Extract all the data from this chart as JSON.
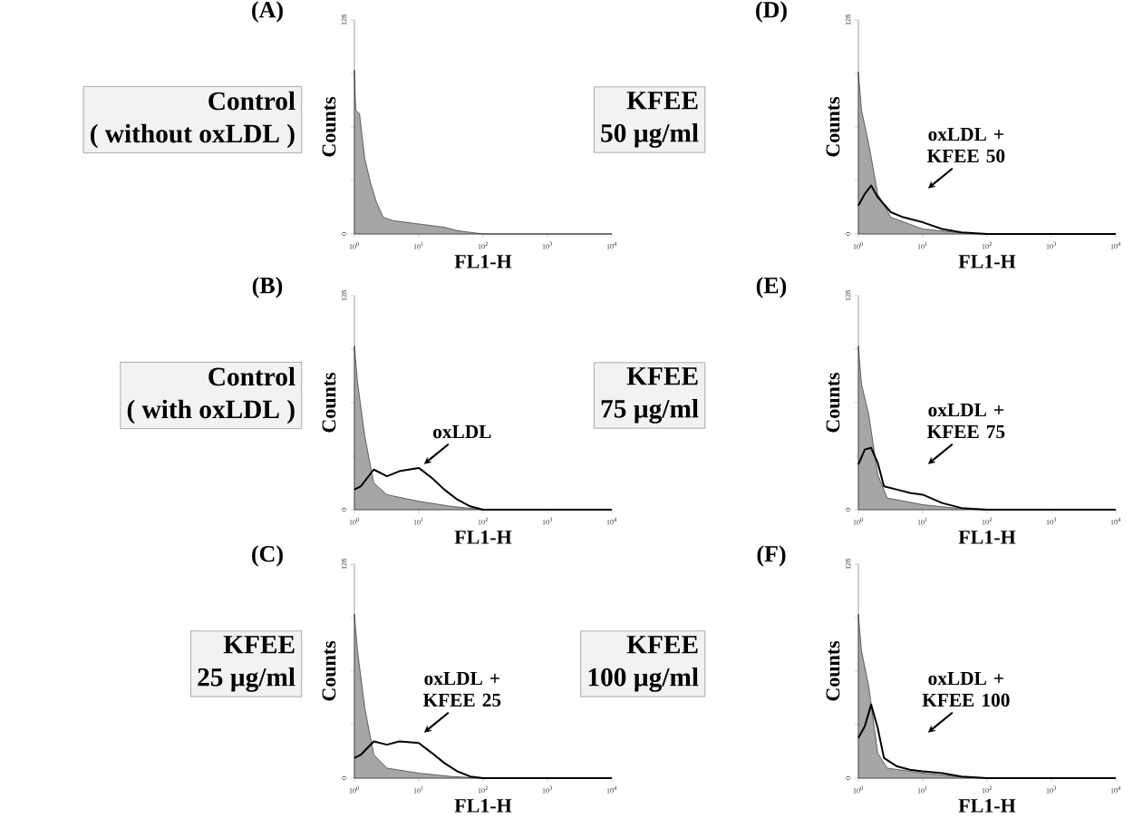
{
  "chart_data": [
    {
      "type": "area",
      "title": "(A)",
      "annotations": [
        "Control",
        "( without oxLDL )"
      ],
      "xlabel": "FL1-H",
      "ylabel": "Counts",
      "log": "x",
      "xlim": [
        1,
        10000
      ],
      "ylim": [
        0,
        128
      ],
      "xticks": [
        {
          "value": 1,
          "label": "10$^{0}$"
        },
        {
          "value": 10,
          "label": "10$^{1}$"
        },
        {
          "value": 100,
          "label": "10$^{2}$"
        },
        {
          "value": 1000,
          "label": "10$^{3}$"
        },
        {
          "value": 10000,
          "label": "10$^{4}$"
        }
      ],
      "yticks": [
        0,
        {
          "value": 32,
          "label": null
        },
        {
          "value": 64,
          "label": null
        },
        {
          "value": 96,
          "label": null
        },
        128
      ],
      "series": [
        {
          "type": "area",
          "color": "#a6a6a6",
          "x": [
            1,
            1.05,
            1.2,
            1.45,
            1.8,
            2.2,
            2.8,
            4,
            6.3,
            10,
            16,
            25,
            40,
            63,
            100,
            10000
          ],
          "values": [
            98,
            74,
            72,
            45,
            30,
            19,
            10,
            8,
            7,
            6,
            5,
            4,
            2,
            1,
            0,
            0
          ]
        }
      ]
    },
    {
      "type": "area",
      "title": "(D)",
      "annotations": [
        "KFEE",
        "50 µg/ml",
        "oxLDL + KFEE 50"
      ],
      "xlabel": "FL1-H",
      "ylabel": "Counts",
      "log": "x",
      "xlim": [
        1,
        10000
      ],
      "ylim": [
        0,
        128
      ],
      "xticks": [
        {
          "value": 1,
          "label": "10$^{0}$"
        },
        {
          "value": 10,
          "label": "10$^{1}$"
        },
        {
          "value": 100,
          "label": "10$^{2}$"
        },
        {
          "value": 1000,
          "label": "10$^{3}$"
        },
        {
          "value": 10000,
          "label": "10$^{4}$"
        }
      ],
      "yticks": [
        0,
        {
          "value": 32,
          "label": null
        },
        {
          "value": 64,
          "label": null
        },
        {
          "value": 96,
          "label": null
        },
        128
      ],
      "series": [
        {
          "type": "area",
          "color": "#a6a6a6",
          "x": [
            1,
            1.12,
            1.45,
            2,
            3.2,
            10,
            32,
            100,
            10000
          ],
          "values": [
            97,
            74,
            54,
            24,
            10,
            3,
            1,
            0,
            0
          ]
        },
        {
          "type": "line",
          "color": "#000000",
          "x": [
            1,
            1.26,
            1.58,
            2,
            3.2,
            5,
            10,
            20,
            40,
            100,
            10000
          ],
          "values": [
            17,
            24,
            29,
            22,
            13,
            10,
            7,
            3,
            1,
            0,
            0
          ]
        }
      ]
    },
    {
      "type": "area",
      "title": "(B)",
      "annotations": [
        "Control",
        "( with oxLDL )",
        "oxLDL"
      ],
      "xlabel": "FL1-H",
      "ylabel": "Counts",
      "log": "x",
      "xlim": [
        1,
        10000
      ],
      "ylim": [
        0,
        128
      ],
      "xticks": [
        {
          "value": 1,
          "label": "10$^{0}$"
        },
        {
          "value": 10,
          "label": "10$^{1}$"
        },
        {
          "value": 100,
          "label": "10$^{2}$"
        },
        {
          "value": 1000,
          "label": "10$^{3}$"
        },
        {
          "value": 10000,
          "label": "10$^{4}$"
        }
      ],
      "yticks": [
        0,
        {
          "value": 32,
          "label": null
        },
        {
          "value": 64,
          "label": null
        },
        {
          "value": 96,
          "label": null
        },
        128
      ],
      "series": [
        {
          "type": "area",
          "color": "#a6a6a6",
          "x": [
            1,
            1.12,
            1.45,
            2,
            3.2,
            10,
            32,
            100,
            10000
          ],
          "values": [
            98,
            76,
            44,
            16,
            9,
            5,
            2,
            0,
            0
          ]
        },
        {
          "type": "line",
          "color": "#000000",
          "x": [
            1,
            1.26,
            2,
            3.2,
            5,
            10,
            16,
            25,
            40,
            63,
            100,
            10000
          ],
          "values": [
            12,
            14,
            24,
            20,
            23,
            25,
            19,
            12,
            6,
            2,
            0,
            0
          ]
        }
      ]
    },
    {
      "type": "area",
      "title": "(E)",
      "annotations": [
        "KFEE",
        "75 µg/ml",
        "oxLDL + KFEE 75"
      ],
      "xlabel": "FL1-H",
      "ylabel": "Counts",
      "log": "x",
      "xlim": [
        1,
        10000
      ],
      "ylim": [
        0,
        128
      ],
      "xticks": [
        {
          "value": 1,
          "label": "10$^{0}$"
        },
        {
          "value": 10,
          "label": "10$^{1}$"
        },
        {
          "value": 100,
          "label": "10$^{2}$"
        },
        {
          "value": 1000,
          "label": "10$^{3}$"
        },
        {
          "value": 10000,
          "label": "10$^{4}$"
        }
      ],
      "yticks": [
        0,
        {
          "value": 32,
          "label": null
        },
        {
          "value": 64,
          "label": null
        },
        {
          "value": 96,
          "label": null
        },
        128
      ],
      "series": [
        {
          "type": "area",
          "color": "#a6a6a6",
          "x": [
            1,
            1.12,
            1.45,
            2,
            2.8,
            10,
            32,
            100,
            10000
          ],
          "values": [
            98,
            75,
            57,
            21,
            7,
            3,
            1,
            0,
            0
          ]
        },
        {
          "type": "line",
          "color": "#000000",
          "x": [
            1,
            1.26,
            1.58,
            2,
            2.5,
            4,
            6.3,
            10,
            20,
            40,
            100,
            10000
          ],
          "values": [
            27,
            36,
            37,
            28,
            14,
            12,
            10,
            9,
            4,
            1,
            0,
            0
          ]
        }
      ]
    },
    {
      "type": "area",
      "title": "(C)",
      "annotations": [
        "KFEE",
        "25 µg/ml",
        "oxLDL + KFEE 25"
      ],
      "xlabel": "FL1-H",
      "ylabel": "Counts",
      "log": "x",
      "xlim": [
        1,
        10000
      ],
      "ylim": [
        0,
        128
      ],
      "xticks": [
        {
          "value": 1,
          "label": "10$^{0}$"
        },
        {
          "value": 10,
          "label": "10$^{1}$"
        },
        {
          "value": 100,
          "label": "10$^{2}$"
        },
        {
          "value": 1000,
          "label": "10$^{3}$"
        },
        {
          "value": 10000,
          "label": "10$^{4}$"
        }
      ],
      "yticks": [
        0,
        {
          "value": 32,
          "label": null
        },
        {
          "value": 64,
          "label": null
        },
        {
          "value": 96,
          "label": null
        },
        128
      ],
      "series": [
        {
          "type": "area",
          "color": "#a6a6a6",
          "x": [
            1,
            1.12,
            1.45,
            2,
            3.2,
            10,
            32,
            100,
            10000
          ],
          "values": [
            98,
            76,
            42,
            14,
            6,
            3,
            1,
            0,
            0
          ]
        },
        {
          "type": "line",
          "color": "#000000",
          "x": [
            1,
            1.26,
            2,
            3.2,
            5,
            10,
            16,
            25,
            40,
            63,
            100,
            10000
          ],
          "values": [
            12,
            14,
            22,
            20,
            22,
            21,
            15,
            9,
            4,
            1,
            0,
            0
          ]
        }
      ]
    },
    {
      "type": "area",
      "title": "(F)",
      "annotations": [
        "KFEE",
        "100 µg/ml",
        "oxLDL + KFEE 100"
      ],
      "xlabel": "FL1-H",
      "ylabel": "Counts",
      "log": "x",
      "xlim": [
        1,
        10000
      ],
      "ylim": [
        0,
        128
      ],
      "xticks": [
        {
          "value": 1,
          "label": "10$^{0}$"
        },
        {
          "value": 10,
          "label": "10$^{1}$"
        },
        {
          "value": 100,
          "label": "10$^{2}$"
        },
        {
          "value": 1000,
          "label": "10$^{3}$"
        },
        {
          "value": 10000,
          "label": "10$^{4}$"
        }
      ],
      "yticks": [
        0,
        {
          "value": 32,
          "label": null
        },
        {
          "value": 64,
          "label": null
        },
        {
          "value": 96,
          "label": null
        },
        128
      ],
      "series": [
        {
          "type": "area",
          "color": "#a6a6a6",
          "x": [
            1,
            1.12,
            1.45,
            2,
            2.8,
            10,
            32,
            100,
            10000
          ],
          "values": [
            98,
            76,
            55,
            15,
            6,
            3,
            1,
            0,
            0
          ]
        },
        {
          "type": "line",
          "color": "#000000",
          "x": [
            1,
            1.26,
            1.58,
            2,
            2.5,
            4,
            6.3,
            10,
            20,
            40,
            100,
            10000
          ],
          "values": [
            24,
            31,
            44,
            30,
            12,
            7,
            5,
            4,
            3,
            1,
            0,
            0
          ]
        }
      ]
    }
  ]
}
